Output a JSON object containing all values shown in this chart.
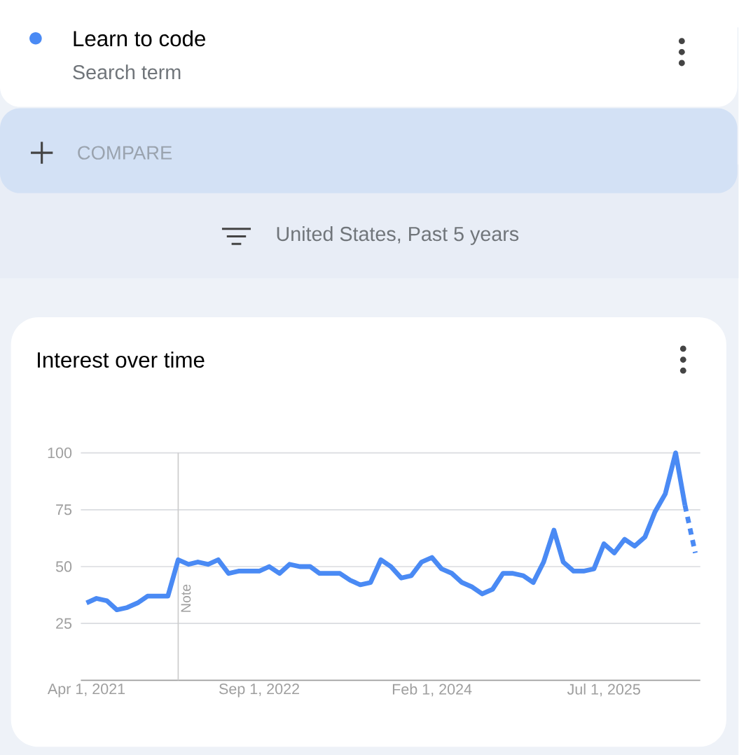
{
  "chart_data": {
    "type": "line",
    "title": "Interest over time",
    "annotations": [
      "Search term",
      "COMPARE",
      "United States, Past 5 years"
    ],
    "legend": "top left",
    "grid": "y",
    "line_style": "solid",
    "xlim": [
      "2021-03-15",
      "2026-04-16"
    ],
    "xticks": [
      {
        "value": "2021-04-01",
        "label": "Apr 1, 2021"
      },
      {
        "value": "2022-09-01",
        "label": "Sep 1, 2022"
      },
      {
        "value": "2024-02-01",
        "label": "Feb 1, 2024"
      },
      {
        "value": "2025-07-01",
        "label": "Jul 1, 2025"
      }
    ],
    "ylim": [
      0,
      100
    ],
    "yticks": [
      25,
      50,
      75,
      100
    ],
    "ref_lines": [
      {
        "axis": "x",
        "value": "2022-01-01",
        "label": "Note",
        "color": "#cccccc"
      }
    ],
    "series": [
      {
        "name": "Learn to code",
        "color": "#4a8af4",
        "x": [
          "2021-04",
          "2021-05",
          "2021-06",
          "2021-07",
          "2021-08",
          "2021-09",
          "2021-10",
          "2021-11",
          "2021-12",
          "2022-01",
          "2022-02",
          "2022-03",
          "2022-04",
          "2022-05",
          "2022-06",
          "2022-07",
          "2022-08",
          "2022-09",
          "2022-10",
          "2022-11",
          "2022-12",
          "2023-01",
          "2023-02",
          "2023-03",
          "2023-04",
          "2023-05",
          "2023-06",
          "2023-07",
          "2023-08",
          "2023-09",
          "2023-10",
          "2023-11",
          "2023-12",
          "2024-01",
          "2024-02",
          "2024-03",
          "2024-04",
          "2024-05",
          "2024-06",
          "2024-07",
          "2024-08",
          "2024-09",
          "2024-10",
          "2024-11",
          "2024-12",
          "2025-01",
          "2025-02",
          "2025-03",
          "2025-04",
          "2025-05",
          "2025-06",
          "2025-07",
          "2025-08",
          "2025-09",
          "2025-10",
          "2025-11",
          "2025-12",
          "2026-01",
          "2026-02",
          "2026-03"
        ],
        "values": [
          34,
          36,
          35,
          31,
          32,
          34,
          37,
          37,
          37,
          53,
          51,
          52,
          51,
          53,
          47,
          48,
          48,
          48,
          50,
          47,
          51,
          50,
          50,
          47,
          47,
          47,
          44,
          42,
          43,
          53,
          50,
          45,
          46,
          52,
          54,
          49,
          47,
          43,
          41,
          38,
          40,
          47,
          47,
          46,
          43,
          52,
          66,
          52,
          48,
          48,
          49,
          60,
          56,
          62,
          59,
          63,
          74,
          82,
          100,
          77
        ]
      },
      {
        "color": "#4a8af4",
        "line_style": "dotted",
        "x": [
          "2026-03",
          "2026-04"
        ],
        "values": [
          77,
          56
        ]
      }
    ]
  }
}
